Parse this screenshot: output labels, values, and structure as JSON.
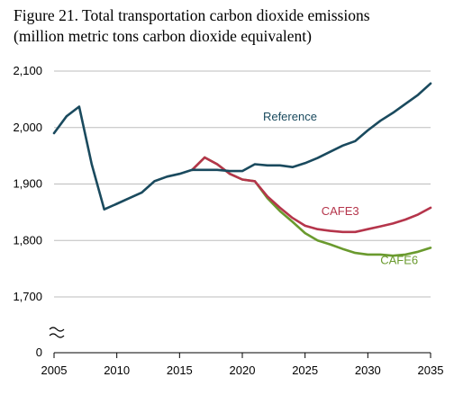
{
  "title_line1": "Figure 21. Total transportation carbon dioxide emissions",
  "title_line2": "(million metric tons carbon dioxide equivalent)",
  "colors": {
    "Reference": "#1a4a5e",
    "CAFE3": "#b5354b",
    "CAFE6": "#6a9a2e"
  },
  "chart_data": {
    "type": "line",
    "title": "Figure 21. Total transportation carbon dioxide emissions (million metric tons carbon dioxide equivalent)",
    "xlabel": "",
    "ylabel": "",
    "xlim": [
      2005,
      2035
    ],
    "ylim": [
      1700,
      2100
    ],
    "axis_break": true,
    "x_ticks": [
      "2005",
      "2010",
      "2015",
      "2020",
      "2025",
      "2030",
      "2035"
    ],
    "y_ticks": [
      "2,100",
      "2,000",
      "1,900",
      "1,800",
      "1,700"
    ],
    "y_tick_values": [
      2100,
      2000,
      1900,
      1800,
      1700
    ],
    "y_zero_label": "0",
    "grid": "horizontal",
    "series": [
      {
        "name": "Reference",
        "x": [
          2005,
          2006,
          2007,
          2008,
          2009,
          2010,
          2011,
          2012,
          2013,
          2014,
          2015,
          2016,
          2017,
          2018,
          2019,
          2020,
          2021,
          2022,
          2023,
          2024,
          2025,
          2026,
          2027,
          2028,
          2029,
          2030,
          2031,
          2032,
          2033,
          2034,
          2035
        ],
        "values": [
          1990,
          2020,
          2037,
          1935,
          1855,
          1865,
          1875,
          1885,
          1905,
          1913,
          1918,
          1925,
          1925,
          1925,
          1923,
          1923,
          1935,
          1933,
          1933,
          1930,
          1937,
          1946,
          1957,
          1968,
          1976,
          1995,
          2012,
          2026,
          2042,
          2058,
          2078
        ]
      },
      {
        "name": "CAFE3",
        "x": [
          2016,
          2017,
          2018,
          2019,
          2020,
          2021,
          2022,
          2023,
          2024,
          2025,
          2026,
          2027,
          2028,
          2029,
          2030,
          2031,
          2032,
          2033,
          2034,
          2035
        ],
        "values": [
          1925,
          1947,
          1935,
          1918,
          1908,
          1905,
          1878,
          1858,
          1840,
          1826,
          1820,
          1817,
          1815,
          1815,
          1820,
          1825,
          1830,
          1837,
          1846,
          1858
        ]
      },
      {
        "name": "CAFE6",
        "x": [
          2016,
          2017,
          2018,
          2019,
          2020,
          2021,
          2022,
          2023,
          2024,
          2025,
          2026,
          2027,
          2028,
          2029,
          2030,
          2031,
          2032,
          2033,
          2034,
          2035
        ],
        "values": [
          1925,
          1947,
          1935,
          1918,
          1908,
          1905,
          1875,
          1852,
          1833,
          1813,
          1800,
          1793,
          1785,
          1778,
          1775,
          1775,
          1773,
          1775,
          1780,
          1787
        ]
      }
    ]
  }
}
